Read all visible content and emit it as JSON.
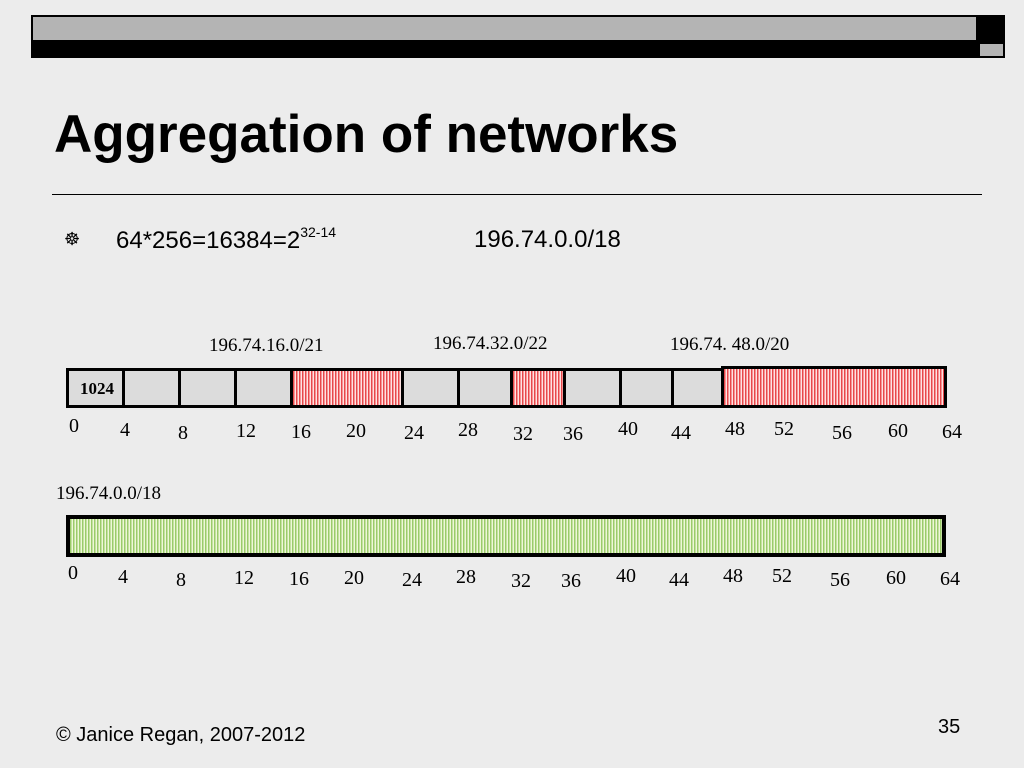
{
  "slide": {
    "title": "Aggregation of networks",
    "bullet_icon": "wheel-bullet-icon",
    "bullet_text": "64*256=16384=2",
    "bullet_exponent": "32-14",
    "bullet_network": "196.74.0.0/18",
    "footer_copyright": "© Janice Regan, 2007-2012",
    "page_number": "35"
  },
  "diagram": {
    "top_labels": [
      "196.74.16.0/21",
      "196.74.32.0/22",
      "196.74. 48.0/20"
    ],
    "first_block_label": "1024",
    "ticks_top": [
      "0",
      "4",
      "8",
      "12",
      "16",
      "20",
      "24",
      "28",
      "32",
      "36",
      "40",
      "44",
      "48",
      "52",
      "56",
      "60",
      "64"
    ],
    "aggregate_label": "196.74.0.0/18",
    "ticks_bottom": [
      "0",
      "4",
      "8",
      "12",
      "16",
      "20",
      "24",
      "28",
      "32",
      "36",
      "40",
      "44",
      "48",
      "52",
      "56",
      "60",
      "64"
    ],
    "colors": {
      "highlight_red": "#e8484a",
      "aggregate_green": "#9acb6a",
      "block_gray": "#dcdcdc"
    }
  }
}
